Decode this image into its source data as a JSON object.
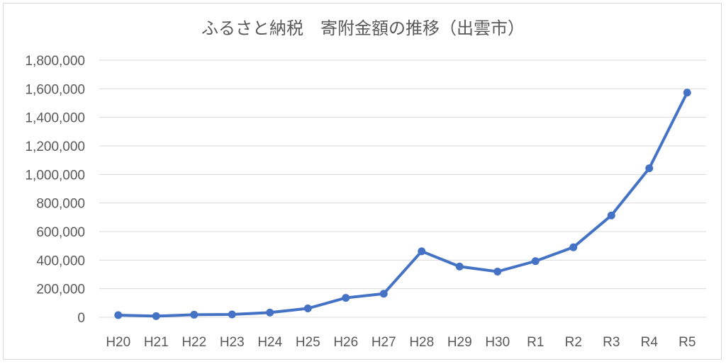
{
  "chart_data": {
    "type": "line",
    "title": "ふるさと納税　寄附金額の推移（出雲市）",
    "xlabel": "",
    "ylabel": "",
    "categories": [
      "H20",
      "H21",
      "H22",
      "H23",
      "H24",
      "H25",
      "H26",
      "H27",
      "H28",
      "H29",
      "H30",
      "R1",
      "R2",
      "R3",
      "R4",
      "R5"
    ],
    "series": [
      {
        "values": [
          15000,
          8000,
          18000,
          20000,
          33000,
          62000,
          136000,
          165000,
          462000,
          355000,
          320000,
          393000,
          490000,
          713000,
          1043000,
          1573000
        ]
      }
    ],
    "ylim": [
      0,
      1800000
    ],
    "yticks": [
      "0",
      "200,000",
      "400,000",
      "600,000",
      "800,000",
      "1,000,000",
      "1,200,000",
      "1,400,000",
      "1,600,000",
      "1,800,000"
    ],
    "grid": true,
    "legend": "none",
    "colors": {
      "line": "#4472c4",
      "grid": "#d9d9d9",
      "text": "#595959"
    }
  }
}
